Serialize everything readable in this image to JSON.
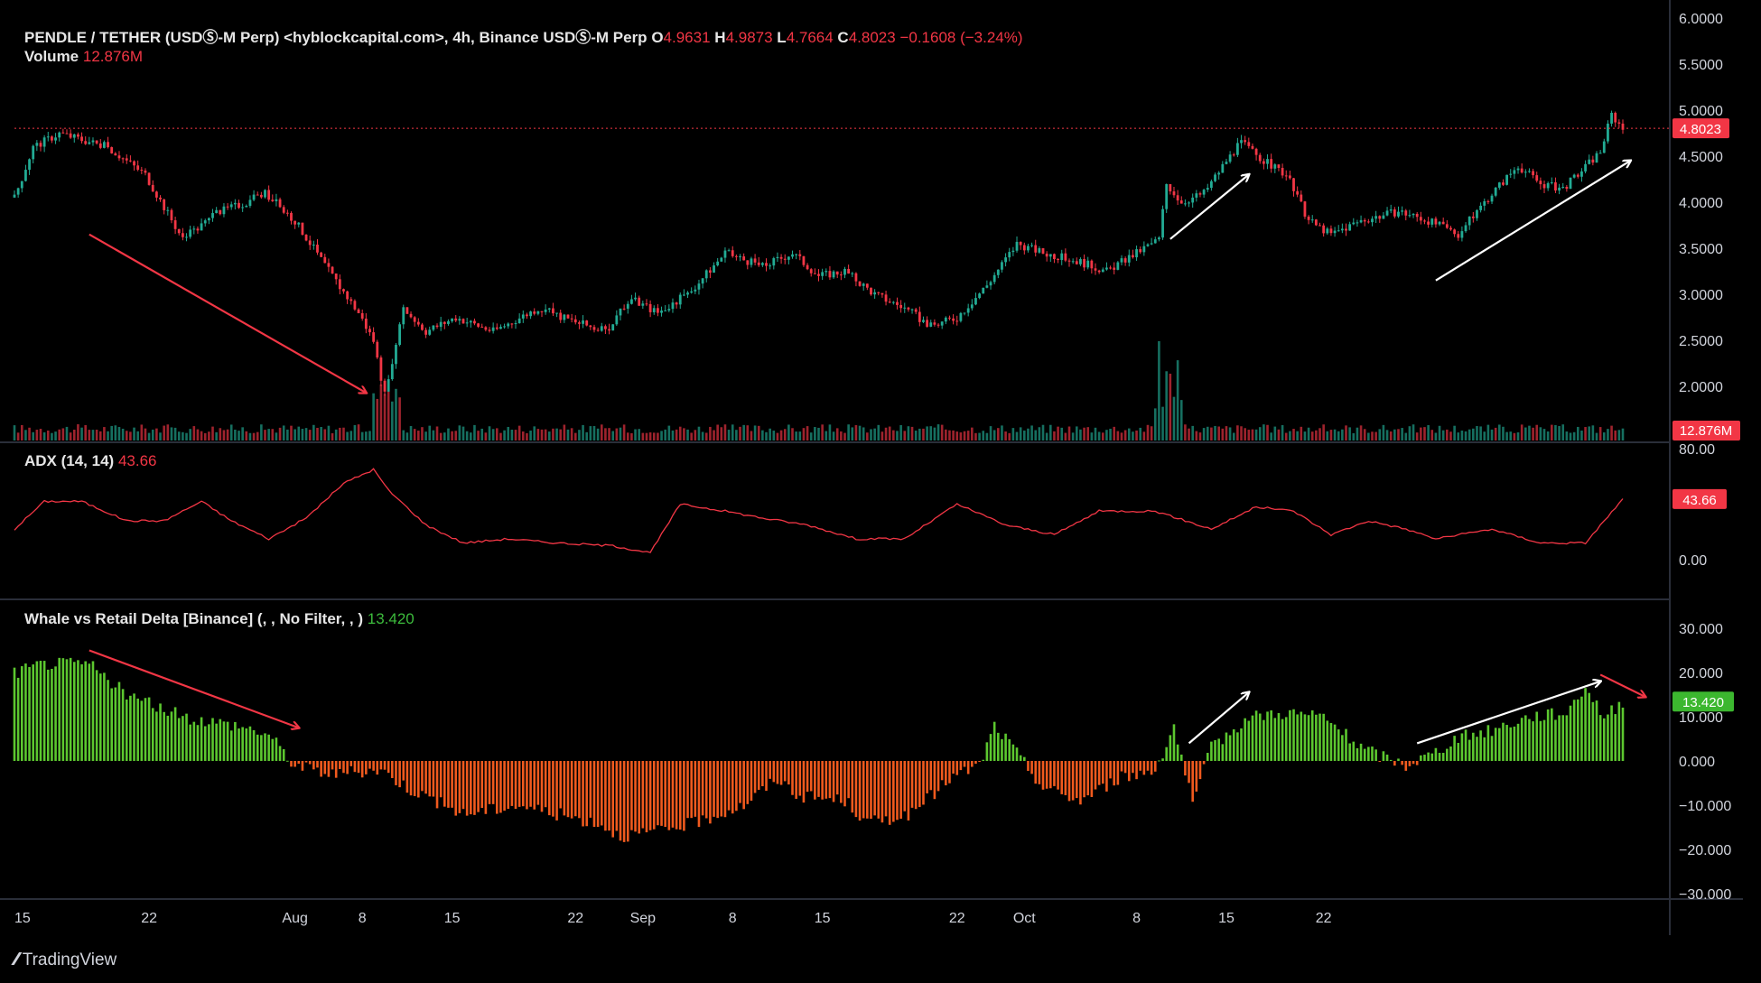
{
  "legend": {
    "symbol": "PENDLE / TETHER (USDⓈ-M Perp) <hyblockcapital.com>, 4h, Binance USDⓈ-M Perp",
    "o_label": "O",
    "o": "4.9631",
    "h_label": "H",
    "h": "4.9873",
    "l_label": "L",
    "l": "4.7664",
    "c_label": "C",
    "c": "4.8023",
    "change": "−0.1608 (−3.24%)",
    "volume_label": "Volume",
    "volume_value": "12.876M",
    "adx_label": "ADX (14, 14)",
    "adx_value": "43.66",
    "delta_label": "Whale vs Retail Delta [Binance] (, , No Filter, , )",
    "delta_value": "13.420"
  },
  "branding": {
    "name": "TradingView"
  },
  "colors": {
    "up": "#22ab94",
    "down": "#f23645",
    "adx": "#f23645",
    "delta_pos": "#5cc72f",
    "delta_neg": "#f05a1e",
    "arrow_red": "#f23645",
    "arrow_white": "#ffffff",
    "background": "#000000"
  },
  "chart_data": [
    {
      "type": "candlestick",
      "title": "PENDLE / TETHER (USDⓈ-M Perp) <hyblockcapital.com>, 4h, Binance USDⓈ-M Perp",
      "x_ticks": [
        "15",
        "22",
        "Aug",
        "8",
        "15",
        "22",
        "Sep",
        "8",
        "15",
        "22",
        "Oct",
        "8",
        "15",
        "22"
      ],
      "y_ticks": [
        "2.0000",
        "2.5000",
        "3.0000",
        "3.5000",
        "4.0000",
        "4.5000",
        "5.0000",
        "5.5000",
        "6.0000"
      ],
      "ylim": [
        1.6,
        6.0
      ],
      "last_price_label": "4.8023",
      "close_path": [
        [
          0,
          4.05
        ],
        [
          5,
          4.6
        ],
        [
          12,
          4.75
        ],
        [
          25,
          4.6
        ],
        [
          35,
          4.3
        ],
        [
          45,
          3.6
        ],
        [
          55,
          3.9
        ],
        [
          62,
          4.0
        ],
        [
          67,
          4.1
        ],
        [
          75,
          3.8
        ],
        [
          85,
          3.2
        ],
        [
          92,
          2.8
        ],
        [
          96,
          2.5
        ],
        [
          99,
          1.9
        ],
        [
          101,
          2.2
        ],
        [
          104,
          2.85
        ],
        [
          110,
          2.6
        ],
        [
          118,
          2.75
        ],
        [
          128,
          2.6
        ],
        [
          140,
          2.85
        ],
        [
          150,
          2.7
        ],
        [
          158,
          2.6
        ],
        [
          165,
          2.95
        ],
        [
          172,
          2.8
        ],
        [
          180,
          3.0
        ],
        [
          190,
          3.45
        ],
        [
          200,
          3.3
        ],
        [
          208,
          3.45
        ],
        [
          215,
          3.2
        ],
        [
          222,
          3.25
        ],
        [
          230,
          3.0
        ],
        [
          238,
          2.85
        ],
        [
          245,
          2.65
        ],
        [
          252,
          2.75
        ],
        [
          260,
          3.1
        ],
        [
          268,
          3.55
        ],
        [
          275,
          3.45
        ],
        [
          285,
          3.35
        ],
        [
          292,
          3.25
        ],
        [
          300,
          3.45
        ],
        [
          306,
          3.6
        ],
        [
          308,
          4.2
        ],
        [
          312,
          4.0
        ],
        [
          318,
          4.1
        ],
        [
          324,
          4.45
        ],
        [
          328,
          4.65
        ],
        [
          334,
          4.45
        ],
        [
          340,
          4.3
        ],
        [
          346,
          3.8
        ],
        [
          352,
          3.65
        ],
        [
          360,
          3.8
        ],
        [
          370,
          3.9
        ],
        [
          378,
          3.8
        ],
        [
          386,
          3.65
        ],
        [
          394,
          4.05
        ],
        [
          402,
          4.4
        ],
        [
          408,
          4.2
        ],
        [
          414,
          4.15
        ],
        [
          418,
          4.3
        ],
        [
          424,
          4.55
        ],
        [
          427,
          4.95
        ],
        [
          430,
          4.8
        ]
      ],
      "series": [
        {
          "name": "Volume",
          "last": "12.876M"
        }
      ]
    },
    {
      "type": "line",
      "title": "ADX (14, 14)",
      "y_ticks": [
        "0.00",
        "80.00"
      ],
      "ylim": [
        -20,
        90
      ],
      "last_value": 43.66,
      "x": [
        0,
        8,
        18,
        30,
        40,
        50,
        58,
        68,
        78,
        88,
        96,
        100,
        110,
        120,
        132,
        145,
        160,
        170,
        178,
        190,
        200,
        212,
        225,
        238,
        252,
        265,
        278,
        290,
        305,
        320,
        332,
        342,
        352,
        362,
        372,
        380,
        395,
        408,
        420,
        430
      ],
      "values": [
        22,
        42,
        42,
        28,
        28,
        42,
        28,
        15,
        30,
        55,
        65,
        50,
        25,
        12,
        15,
        12,
        10,
        5,
        40,
        35,
        30,
        25,
        15,
        15,
        40,
        25,
        18,
        35,
        35,
        22,
        38,
        35,
        18,
        28,
        22,
        15,
        22,
        12,
        12,
        43.66
      ]
    },
    {
      "type": "bar",
      "title": "Whale vs Retail Delta [Binance] (, , No Filter, , )",
      "y_ticks": [
        "−30.000",
        "−20.000",
        "−10.000",
        "0.000",
        "10.000",
        "20.000",
        "30.000"
      ],
      "ylim": [
        -31,
        34
      ],
      "last_value": 13.42,
      "x": [
        0,
        8,
        20,
        30,
        45,
        60,
        68,
        75,
        85,
        98,
        105,
        120,
        135,
        150,
        156,
        162,
        172,
        182,
        195,
        204,
        210,
        222,
        228,
        240,
        250,
        258,
        262,
        266,
        275,
        285,
        295,
        305,
        310,
        315,
        320,
        330,
        340,
        350,
        360,
        372,
        380,
        385,
        395,
        405,
        415,
        420,
        425,
        430
      ],
      "values": [
        20,
        22,
        22,
        15,
        10,
        8,
        6,
        -1,
        -3,
        -2,
        -6,
        -12,
        -10,
        -13,
        -14,
        -17,
        -16,
        -14,
        -10,
        -4,
        -8,
        -9,
        -14,
        -12,
        -4,
        -1,
        8,
        4,
        -6,
        -9,
        -4,
        -2,
        8,
        -10,
        3,
        10,
        11,
        10,
        3,
        -1,
        2,
        5,
        7,
        10,
        11,
        17,
        10,
        13.42
      ]
    }
  ]
}
